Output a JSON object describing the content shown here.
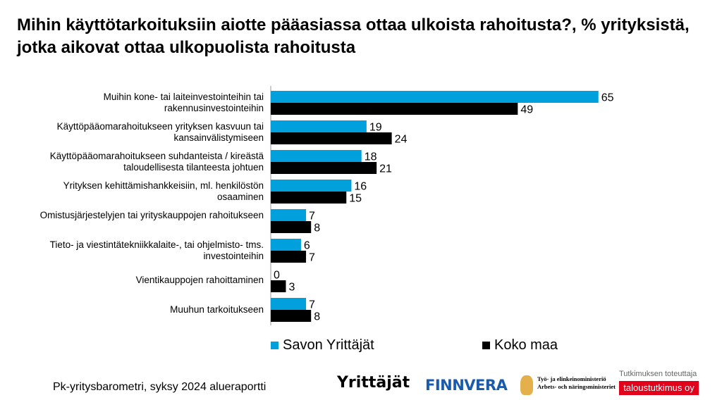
{
  "chart_data": {
    "type": "bar",
    "orientation": "horizontal",
    "title": "Mihin käyttötarkoituksiin aiotte pääasiassa ottaa ulkoista rahoitusta?, % yrityksistä, jotka aikovat ottaa ulkopuolista rahoitusta",
    "categories": [
      "Muihin kone- tai laiteinvestointeihin tai rakennusinvestointeihin",
      "Käyttöpääomarahoitukseen yrityksen kasvuun tai kansainvälistymiseen",
      "Käyttöpääomarahoitukseen suhdanteista / kireästä taloudellisesta tilanteesta johtuen",
      "Yrityksen kehittämishankkeisiin, ml. henkilöstön osaaminen",
      "Omistusjärjestelyjen tai yrityskauppojen rahoitukseen",
      "Tieto- ja viestintätekniikkalaite-, tai ohjelmisto- tms. investointeihin",
      "Vientikauppojen rahoittaminen",
      "Muuhun tarkoitukseen"
    ],
    "series": [
      {
        "name": "Savon Yrittäjät",
        "color": "#00a0dc",
        "values": [
          65,
          19,
          18,
          16,
          7,
          6,
          0,
          7
        ]
      },
      {
        "name": "Koko maa",
        "color": "#000000",
        "values": [
          49,
          24,
          21,
          15,
          8,
          7,
          3,
          8
        ]
      }
    ],
    "xlim": [
      0,
      70
    ],
    "legend": "bottom"
  },
  "footer": "Pk-yritysbarometri, syksy 2024 alueraportti",
  "logos": {
    "yrittajat": "Yrittäjät",
    "finnvera": "FINNVERA",
    "tem1": "Työ- ja elinkeinoministeriö",
    "tem2": "Arbets- och näringsministeriet",
    "tt_label": "Tutkimuksen toteuttaja",
    "tt": "taloustutkimus oy"
  }
}
